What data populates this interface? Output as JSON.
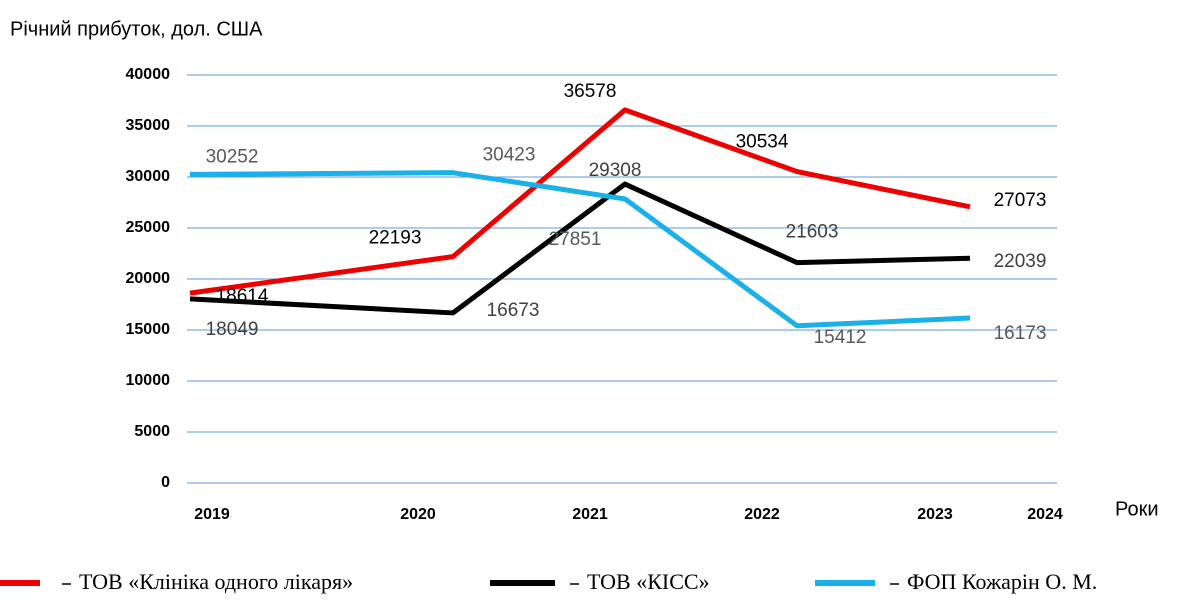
{
  "chart_data": {
    "type": "line",
    "ylabel": "Річний прибуток, дол. США",
    "xlabel": "Роки",
    "categories": [
      "2019",
      "2020",
      "2021",
      "2022",
      "2023",
      "2024"
    ],
    "series": [
      {
        "name": "ТОВ «Клініка одного лікаря»",
        "color": "#ee0000",
        "values": [
          18614,
          22193,
          36578,
          30534,
          27073,
          null
        ]
      },
      {
        "name": "ТОВ «КІСС»",
        "color": "#000000",
        "values": [
          18049,
          16673,
          29308,
          21603,
          22039,
          null
        ]
      },
      {
        "name": "ФОП Кожарін О. М.",
        "color": "#1ab0e8",
        "values": [
          30252,
          30423,
          27851,
          15412,
          16173,
          null
        ]
      }
    ],
    "ylim": [
      0,
      40000
    ],
    "yticks": [
      0,
      5000,
      10000,
      15000,
      20000,
      25000,
      30000,
      35000,
      40000
    ],
    "grid": true
  }
}
